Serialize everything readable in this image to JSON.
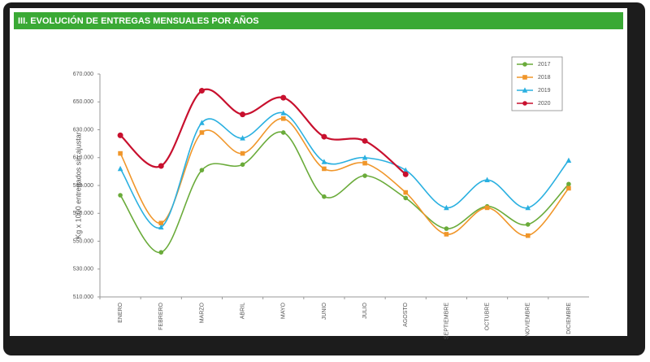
{
  "chart_data": {
    "type": "line",
    "title": "III. EVOLUCIÓN DE ENTREGAS MENSUALES POR AÑOS",
    "y_label": "Kg x 1000 entregados sin ajustar",
    "categories": [
      "ENERO",
      "FEBRERO",
      "MARZO",
      "ABRIL",
      "MAYO",
      "JUNIO",
      "JULIO",
      "AGOSTO",
      "SEPTIEMBRE",
      "OCTUBRE",
      "NOVIEMBRE",
      "DICIEMBRE"
    ],
    "series": [
      {
        "name": "2017",
        "color": "#6aab3a",
        "marker": "circle",
        "values": [
          583000,
          542000,
          601000,
          605000,
          628000,
          582000,
          597000,
          581000,
          559000,
          575000,
          562000,
          591000
        ]
      },
      {
        "name": "2018",
        "color": "#f0962a",
        "marker": "square",
        "values": [
          613000,
          563000,
          628000,
          613000,
          638000,
          602000,
          606000,
          585000,
          555000,
          574000,
          554000,
          588000
        ]
      },
      {
        "name": "2019",
        "color": "#2ab0e0",
        "marker": "triangle",
        "values": [
          602000,
          560000,
          635000,
          624000,
          642000,
          607000,
          610000,
          601000,
          574000,
          594000,
          574000,
          608000
        ]
      },
      {
        "name": "2020",
        "color": "#c8102e",
        "marker": "circle",
        "values": [
          626000,
          604000,
          658000,
          641000,
          653000,
          625000,
          622000,
          598000,
          null,
          null,
          null,
          null
        ]
      }
    ],
    "ylim": [
      510000,
      670000
    ],
    "yticks": [
      {
        "value": 510000,
        "label": "510.000"
      },
      {
        "value": 530000,
        "label": "530.000"
      },
      {
        "value": 550000,
        "label": "550.000"
      },
      {
        "value": 570000,
        "label": "570.000"
      },
      {
        "value": 590000,
        "label": "590.000"
      },
      {
        "value": 610000,
        "label": "610.000"
      },
      {
        "value": 630000,
        "label": "630.000"
      },
      {
        "value": 650000,
        "label": "650.000"
      },
      {
        "value": 670000,
        "label": "670.000"
      }
    ],
    "grid": false,
    "legend": "upper right",
    "header_color": "#3aa935"
  }
}
